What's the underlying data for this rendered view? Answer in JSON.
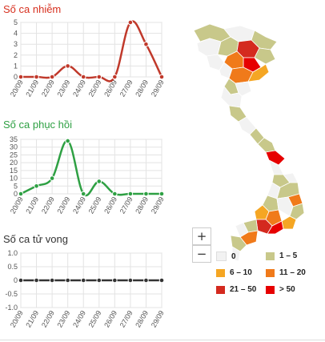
{
  "charts": {
    "infected": {
      "title": "Số ca nhiễm",
      "title_color": "#d7301f"
    },
    "recovered": {
      "title": "Số ca phục hồi",
      "title_color": "#2ea043"
    },
    "deaths": {
      "title": "Số ca tử vong",
      "title_color": "#333333"
    }
  },
  "chart_data": [
    {
      "type": "line",
      "title": "Số ca nhiễm",
      "categories": [
        "20/09",
        "21/09",
        "22/09",
        "23/09",
        "24/09",
        "25/09",
        "26/09",
        "27/09",
        "28/09",
        "29/09"
      ],
      "values": [
        0,
        0,
        0,
        1,
        0,
        0,
        0,
        5,
        3,
        0
      ],
      "yticks": [
        0,
        1,
        2,
        3,
        4,
        5
      ],
      "ylim": [
        0,
        5
      ],
      "color": "#c0392b"
    },
    {
      "type": "line",
      "title": "Số ca phục hồi",
      "categories": [
        "20/09",
        "21/09",
        "22/09",
        "23/09",
        "24/09",
        "25/09",
        "26/09",
        "27/09",
        "28/09",
        "29/09"
      ],
      "values": [
        0,
        5,
        10,
        34,
        0,
        8,
        0,
        0,
        0,
        0
      ],
      "yticks": [
        0,
        5,
        10,
        15,
        20,
        25,
        30,
        35
      ],
      "ylim": [
        0,
        35
      ],
      "color": "#2ea043"
    },
    {
      "type": "line",
      "title": "Số ca tử vong",
      "categories": [
        "20/09",
        "21/09",
        "22/09",
        "23/09",
        "24/09",
        "25/09",
        "26/09",
        "27/09",
        "28/09",
        "29/09"
      ],
      "values": [
        0,
        0,
        0,
        0,
        0,
        0,
        0,
        0,
        0,
        0
      ],
      "yticks": [
        -1.0,
        -0.5,
        0,
        0.5,
        1.0
      ],
      "ytick_labels": [
        "-1.0",
        "-0.5",
        "0",
        "0.5",
        "1.0"
      ],
      "ylim": [
        -1,
        1
      ],
      "color": "#333333"
    }
  ],
  "map": {
    "zoom_in_label": "+",
    "zoom_out_label": "−",
    "legend": [
      {
        "label": "0",
        "color": "#f2f2f2"
      },
      {
        "label": "1 – 5",
        "color": "#c8c88a"
      },
      {
        "label": "6 – 10",
        "color": "#f5a623"
      },
      {
        "label": "11 – 20",
        "color": "#f07a1a"
      },
      {
        "label": "21 – 50",
        "color": "#d42a1f"
      },
      {
        "label": "> 50",
        "color": "#e60000"
      }
    ]
  }
}
